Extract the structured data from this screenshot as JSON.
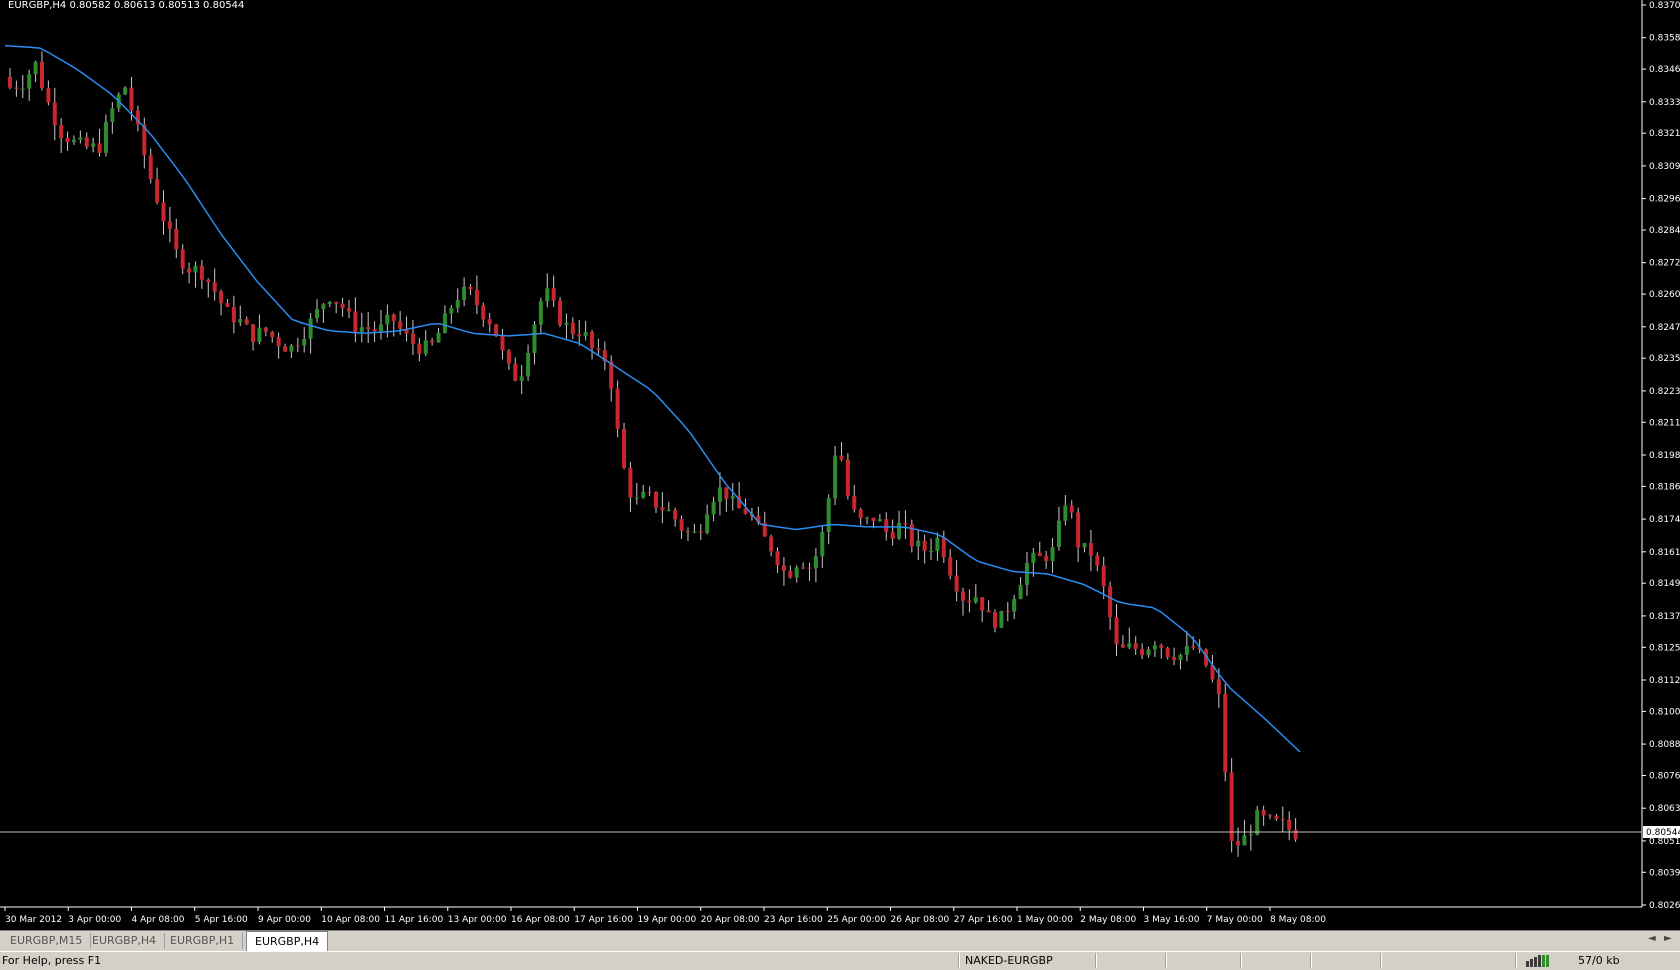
{
  "header": {
    "symbol_info": "EURGBP,H4  0.80582 0.80613 0.80513 0.80544"
  },
  "colors": {
    "background": "#000000",
    "bull_candle": "#2e8b2e",
    "bear_candle": "#c8282d",
    "wick": "#c8c8c8",
    "moving_average": "#2a8cf0",
    "grid_text": "#ffffff"
  },
  "chart_data": {
    "type": "candlestick",
    "symbol": "EURGBP",
    "timeframe": "H4",
    "current_price": "0.80544",
    "price_range": [
      0.80265,
      0.83705
    ],
    "y_ticks": [
      "0.83705",
      "0.83580",
      "0.83460",
      "0.83335",
      "0.83215",
      "0.83090",
      "0.82965",
      "0.82845",
      "0.82720",
      "0.82600",
      "0.82475",
      "0.82355",
      "0.82230",
      "0.82110",
      "0.81985",
      "0.81865",
      "0.81740",
      "0.81615",
      "0.81495",
      "0.81370",
      "0.81250",
      "0.81125",
      "0.81005",
      "0.80880",
      "0.80760",
      "0.80635",
      "0.80510",
      "0.80390",
      "0.80265"
    ],
    "x_ticks": [
      "30 Mar 2012",
      "3 Apr 00:00",
      "4 Apr 08:00",
      "5 Apr 16:00",
      "9 Apr 00:00",
      "10 Apr 08:00",
      "11 Apr 16:00",
      "13 Apr 00:00",
      "16 Apr 08:00",
      "17 Apr 16:00",
      "19 Apr 00:00",
      "20 Apr 08:00",
      "23 Apr 16:00",
      "25 Apr 00:00",
      "26 Apr 08:00",
      "27 Apr 16:00",
      "1 May 00:00",
      "2 May 08:00",
      "3 May 16:00",
      "7 May 00:00",
      "8 May 08:00"
    ],
    "close_anchors": [
      0.8339,
      0.8341,
      0.8348,
      0.8333,
      0.8322,
      0.8318,
      0.8316,
      0.8316,
      0.833,
      0.834,
      0.8323,
      0.8305,
      0.829,
      0.8276,
      0.827,
      0.8269,
      0.8262,
      0.8253,
      0.825,
      0.8244,
      0.8246,
      0.8242,
      0.8239,
      0.8245,
      0.8252,
      0.826,
      0.8256,
      0.8248,
      0.8247,
      0.8246,
      0.8251,
      0.8244,
      0.824,
      0.8239,
      0.8248,
      0.8259,
      0.8261,
      0.8254,
      0.8248,
      0.8232,
      0.8227,
      0.8246,
      0.8262,
      0.8252,
      0.8246,
      0.8246,
      0.8236,
      0.8235,
      0.8197,
      0.818,
      0.8183,
      0.8179,
      0.8176,
      0.8169,
      0.8168,
      0.8182,
      0.8186,
      0.8178,
      0.8177,
      0.8168,
      0.8162,
      0.8152,
      0.8159,
      0.8155,
      0.8171,
      0.8206,
      0.8178,
      0.8172,
      0.8175,
      0.8168,
      0.8172,
      0.8164,
      0.8162,
      0.8167,
      0.8153,
      0.8143,
      0.8145,
      0.8135,
      0.8136,
      0.8147,
      0.8158,
      0.8159,
      0.8162,
      0.8183,
      0.8163,
      0.8161,
      0.8146,
      0.8123,
      0.8125,
      0.8124,
      0.8128,
      0.8123,
      0.8122,
      0.8125,
      0.8118,
      0.8105,
      0.8048,
      0.8052,
      0.806,
      0.8058,
      0.8057,
      0.8054
    ],
    "moving_average_anchors": [
      0.8355,
      0.8354,
      0.8346,
      0.8336,
      0.8322,
      0.8304,
      0.8283,
      0.8265,
      0.825,
      0.8246,
      0.8245,
      0.8246,
      0.8249,
      0.8245,
      0.8244,
      0.8245,
      0.8241,
      0.8232,
      0.8223,
      0.8208,
      0.8188,
      0.8172,
      0.817,
      0.8172,
      0.8171,
      0.8171,
      0.8168,
      0.8158,
      0.8154,
      0.8153,
      0.8149,
      0.8142,
      0.814,
      0.8129,
      0.811,
      0.8098,
      0.8085
    ]
  },
  "tabs": [
    {
      "label": "EURGBP,M15"
    },
    {
      "label": "EURGBP,H4"
    },
    {
      "label": "EURGBP,H1"
    },
    {
      "label": "EURGBP,H4"
    }
  ],
  "tab_nav": {
    "prev": "◄",
    "next": "►"
  },
  "status": {
    "help": "For Help, press F1",
    "profile": "NAKED-EURGBP",
    "traffic": "57/0 kb"
  }
}
